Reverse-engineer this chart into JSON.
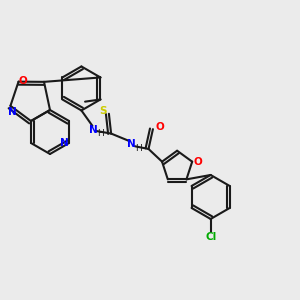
{
  "bg_color": "#ebebeb",
  "bond_color": "#1a1a1a",
  "atom_colors": {
    "N": "#0000ff",
    "O": "#ff0000",
    "S": "#cccc00",
    "Cl": "#00aa00"
  },
  "line_width": 1.5,
  "figsize": [
    3.0,
    3.0
  ],
  "dpi": 100
}
